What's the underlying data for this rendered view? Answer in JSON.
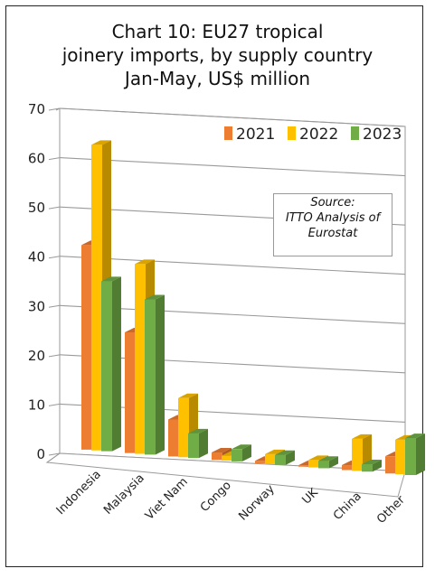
{
  "chart_data": {
    "type": "bar",
    "title_lines": [
      "Chart 10: EU27 tropical",
      "joinery imports, by supply country",
      "Jan-May, US$ million"
    ],
    "categories": [
      "Indonesia",
      "Malaysia",
      "Viet Nam",
      "Congo",
      "Norway",
      "UK",
      "China",
      "Other"
    ],
    "series": [
      {
        "name": "2021",
        "color": "#ED7D31",
        "values": [
          41.5,
          24.5,
          7.5,
          1.5,
          0.5,
          0.3,
          1.0,
          3.5
        ]
      },
      {
        "name": "2022",
        "color": "#FFC000",
        "values": [
          62.0,
          38.5,
          12.0,
          1.0,
          2.0,
          1.5,
          6.5,
          7.0
        ]
      },
      {
        "name": "2023",
        "color": "#70AD47",
        "values": [
          34.5,
          31.5,
          5.0,
          2.5,
          2.0,
          1.5,
          1.5,
          7.5
        ]
      }
    ],
    "ylim": [
      0,
      70
    ],
    "yticks": [
      0,
      10,
      20,
      30,
      40,
      50,
      60,
      70
    ],
    "legend_position": "top-right",
    "grid": true,
    "annotation": [
      "Source:",
      "ITTO Analysis of",
      "Eurostat"
    ]
  }
}
